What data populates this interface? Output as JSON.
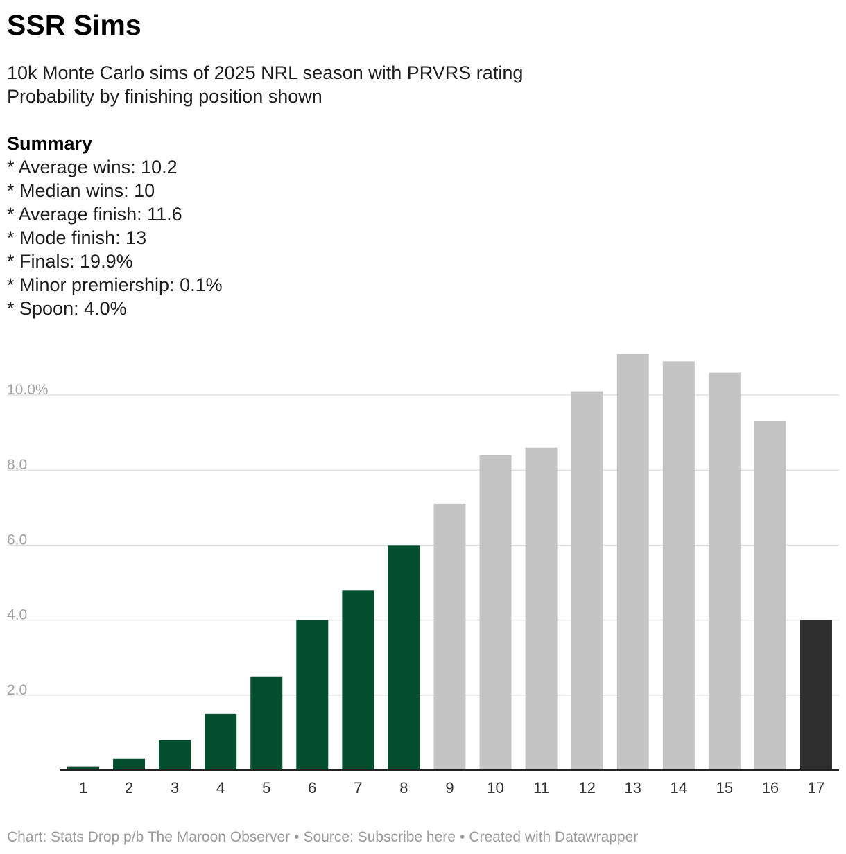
{
  "header": {
    "title": "SSR Sims",
    "subtitle_lines": [
      "10k Monte Carlo sims of 2025 NRL season with PRVRS rating",
      "Probability by finishing position shown"
    ]
  },
  "summary": {
    "heading": "Summary",
    "items": [
      "* Average wins: 10.2",
      "* Median wins: 10",
      "* Average finish: 11.6",
      "* Mode finish: 13",
      "* Finals: 19.9%",
      "* Minor premiership: 0.1%",
      "* Spoon: 4.0%"
    ]
  },
  "chart_data": {
    "type": "bar",
    "title": "SSR Sims",
    "xlabel": "",
    "ylabel": "",
    "categories": [
      "1",
      "2",
      "3",
      "4",
      "5",
      "6",
      "7",
      "8",
      "9",
      "10",
      "11",
      "12",
      "13",
      "14",
      "15",
      "16",
      "17"
    ],
    "values": [
      0.1,
      0.3,
      0.8,
      1.5,
      2.5,
      4.0,
      4.8,
      6.0,
      7.1,
      8.4,
      8.6,
      10.1,
      11.1,
      10.9,
      10.6,
      9.3,
      4.0
    ],
    "ylim": [
      0,
      12
    ],
    "yticks": [
      2,
      4,
      6,
      8,
      10
    ],
    "ytick_labels": [
      "2.0",
      "4.0",
      "6.0",
      "8.0",
      "10.0%"
    ],
    "grid": true,
    "bar_colors": [
      "#034f2f",
      "#034f2f",
      "#034f2f",
      "#034f2f",
      "#034f2f",
      "#034f2f",
      "#034f2f",
      "#034f2f",
      "#c4c4c4",
      "#c4c4c4",
      "#c4c4c4",
      "#c4c4c4",
      "#c4c4c4",
      "#c4c4c4",
      "#c4c4c4",
      "#c4c4c4",
      "#2f2f2f"
    ]
  },
  "colors": {
    "finals": "#034f2f",
    "non_finals": "#c4c4c4",
    "spoon": "#2f2f2f",
    "gridline": "#e2e2e2",
    "tick_label": "#a2a2a2"
  },
  "footer": {
    "chart_credit": "Chart: Stats Drop p/b The Maroon Observer",
    "source": "Source: Subscribe here",
    "tool": "Created with Datawrapper",
    "separator": "•"
  }
}
